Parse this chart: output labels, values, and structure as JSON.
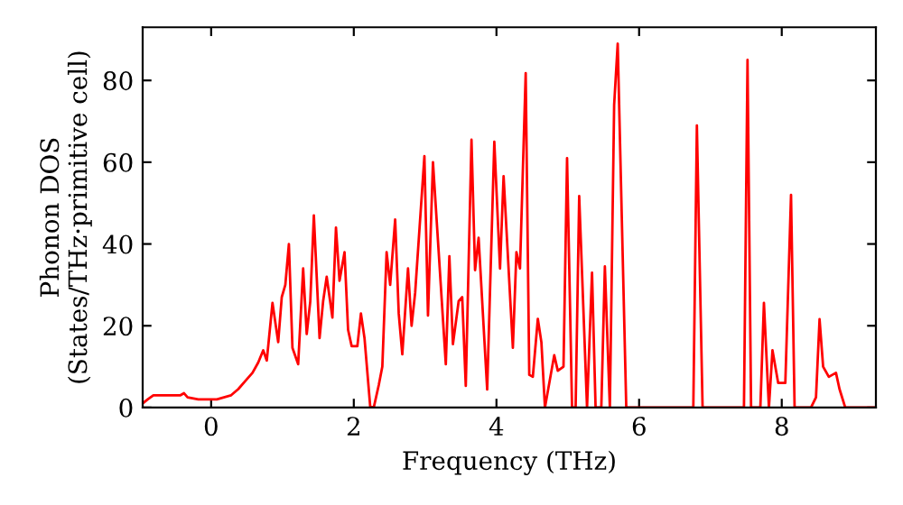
{
  "chart_data": {
    "type": "line",
    "xlabel": "Frequency (THz)",
    "ylabel": "Phonon DOS\n(States/THz·primitive cell)",
    "xlim": [
      -0.96,
      9.32
    ],
    "ylim": [
      0,
      93
    ],
    "xticks": [
      0,
      2,
      4,
      6,
      8
    ],
    "yticks": [
      0,
      20,
      40,
      60,
      80
    ],
    "grid": false,
    "series": [
      {
        "color": "#ff0000",
        "x": [
          -0.96,
          -0.89,
          -0.81,
          -0.56,
          -0.43,
          -0.38,
          -0.33,
          -0.18,
          0.08,
          0.28,
          0.38,
          0.48,
          0.58,
          0.66,
          0.73,
          0.78,
          0.86,
          0.94,
          0.99,
          1.04,
          1.09,
          1.14,
          1.22,
          1.29,
          1.34,
          1.39,
          1.44,
          1.52,
          1.57,
          1.62,
          1.7,
          1.75,
          1.8,
          1.87,
          1.92,
          1.97,
          2.05,
          2.1,
          2.15,
          2.23,
          2.28,
          2.35,
          2.4,
          2.46,
          2.51,
          2.58,
          2.63,
          2.68,
          2.76,
          2.81,
          2.86,
          2.99,
          3.04,
          3.11,
          3.29,
          3.34,
          3.39,
          3.47,
          3.52,
          3.57,
          3.65,
          3.7,
          3.75,
          3.87,
          3.97,
          4.05,
          4.1,
          4.23,
          4.28,
          4.33,
          4.41,
          4.46,
          4.51,
          4.58,
          4.63,
          4.68,
          4.81,
          4.86,
          4.94,
          4.99,
          5.06,
          5.11,
          5.16,
          5.27,
          5.34,
          5.39,
          5.47,
          5.52,
          5.59,
          5.65,
          5.7,
          5.82,
          6.76,
          6.81,
          6.89,
          7.47,
          7.52,
          7.57,
          7.7,
          7.75,
          7.82,
          7.87,
          7.95,
          8.05,
          8.13,
          8.18,
          8.41,
          8.48,
          8.53,
          8.58,
          8.66,
          8.76,
          8.81,
          8.89,
          9.32
        ],
        "values": [
          1,
          2,
          3,
          3,
          3,
          3.5,
          2.5,
          2,
          2,
          3,
          4.5,
          6.5,
          8.5,
          11,
          14,
          11.5,
          25.6,
          16,
          27,
          30,
          40,
          14.6,
          10.6,
          34,
          18,
          26,
          47,
          17,
          26,
          32,
          22,
          44,
          31,
          38,
          19,
          15,
          15,
          23,
          17,
          0.3,
          0,
          5.5,
          10,
          38,
          30,
          46,
          23,
          13,
          34,
          20,
          28,
          61.5,
          22.5,
          60,
          10.6,
          37,
          15.5,
          26,
          27,
          5.3,
          65.5,
          33.6,
          41.5,
          4.4,
          65,
          34,
          56.6,
          14.6,
          38,
          34,
          81.8,
          8,
          7.5,
          21.7,
          16,
          0,
          12.8,
          9,
          10,
          61,
          0,
          0,
          51.7,
          0,
          33,
          0,
          0,
          34.5,
          0,
          74,
          89,
          0,
          0,
          69,
          0,
          0,
          85,
          0,
          0,
          25.6,
          0,
          14,
          6,
          6,
          52,
          0,
          0,
          2.5,
          21.6,
          10,
          7.5,
          8.5,
          4.5,
          0,
          0
        ]
      }
    ]
  }
}
